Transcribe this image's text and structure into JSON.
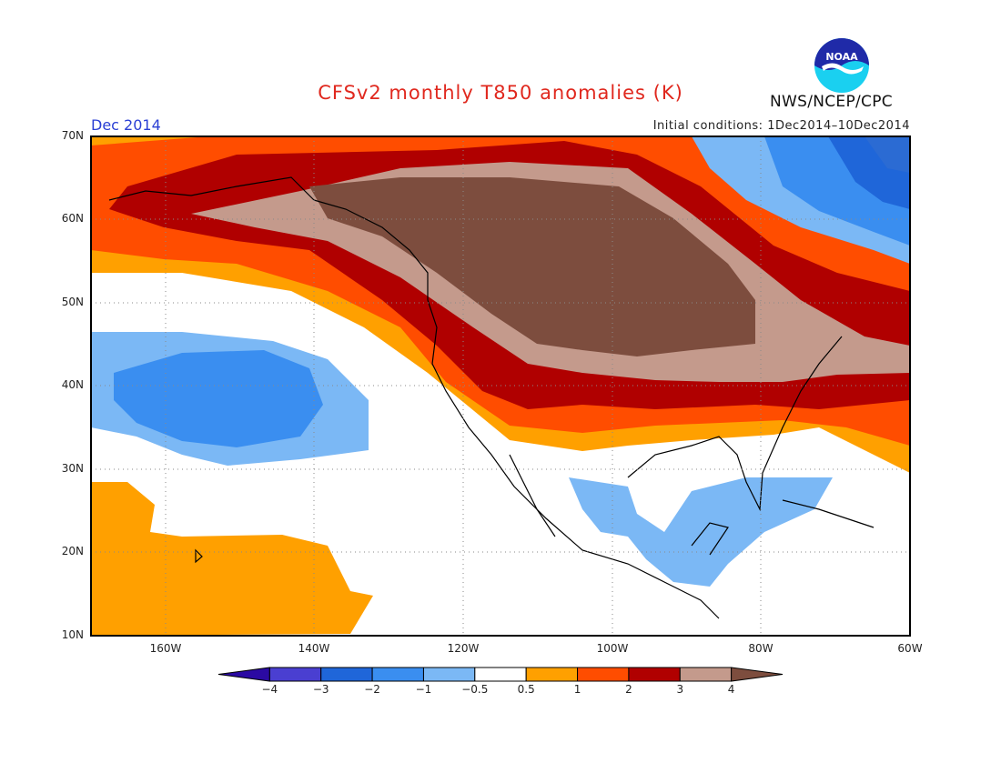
{
  "header": {
    "title": "CFSv2 monthly T850 anomalies (K)",
    "period": "Dec 2014",
    "initial_conditions": "Initial conditions: 1Dec2014–10Dec2014",
    "agency": "NWS/NCEP/CPC",
    "logo_text": "NOAA"
  },
  "axes": {
    "lat_labels": [
      "70N",
      "60N",
      "50N",
      "40N",
      "30N",
      "20N",
      "10N"
    ],
    "lon_labels": [
      "160W",
      "140W",
      "120W",
      "100W",
      "80W",
      "60W"
    ],
    "lat_range": [
      10,
      70
    ],
    "lon_range": [
      -170,
      -60
    ]
  },
  "colorbar": {
    "labels": [
      "−4",
      "−3",
      "−2",
      "−1",
      "−0.5",
      "0.5",
      "1",
      "2",
      "3",
      "4"
    ],
    "colors": [
      "#2b0aa3",
      "#4a3fd1",
      "#1f66d9",
      "#3a8ef0",
      "#7bb8f5",
      "#ffffff",
      "#ffa000",
      "#ff4d00",
      "#b00000",
      "#c49a8c",
      "#7d4d3e"
    ]
  },
  "map_colors": {
    "land_stroke": "#000000",
    "grid": "#8a8a8a",
    "frame": "#000000"
  }
}
